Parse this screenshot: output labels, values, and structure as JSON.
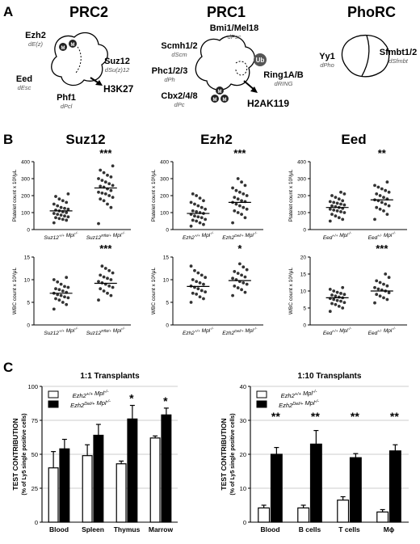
{
  "panel_letters": {
    "a": "A",
    "b": "B",
    "c": "C"
  },
  "panelA": {
    "prc2": {
      "title": "PRC2",
      "subunits": [
        {
          "name": "Ezh2",
          "fly": "dE(z)"
        },
        {
          "name": "Suz12",
          "fly": "dSu(z)12"
        },
        {
          "name": "Eed",
          "fly": "dEsc"
        },
        {
          "name": "Phf1",
          "fly": "dPcl"
        }
      ],
      "mark": "H3K27",
      "m_badge": "M"
    },
    "prc1": {
      "title": "PRC1",
      "subunits": [
        {
          "name": "Bmi1/Mel18",
          "fly": "dPsc"
        },
        {
          "name": "Scmh1/2",
          "fly": "dScm"
        },
        {
          "name": "Phc1/2/3",
          "fly": "dPh"
        },
        {
          "name": "Ring1A/B",
          "fly": "dRING"
        },
        {
          "name": "Cbx2/4/8",
          "fly": "dPc"
        }
      ],
      "ub_badge": "Ub",
      "mark": "H2AK119"
    },
    "phorc": {
      "title": "PhoRC",
      "subunits": [
        {
          "name": "Yy1",
          "fly": "dPho"
        },
        {
          "name": "Sfmbt1/2",
          "fly": "dSfmbt"
        }
      ]
    }
  },
  "panelB": {
    "column_titles": [
      "Suz12",
      "Ezh2",
      "Eed"
    ],
    "platelet_ylabel": "Platelet count x 10³/μL",
    "wbc_ylabel": "WBC count x 10³/μL",
    "genotypes": {
      "suz12": [
        "Suz12+/+ Mpl-/-",
        "Suz12Rfl8/+ Mpl-/-"
      ],
      "ezh2": [
        "Ezh2+/+ Mpl-/-",
        "Ezh2Del/+ Mpl-/-"
      ],
      "eed": [
        "Eed+/+ Mpl-/-",
        "Eed+/- Mpl-/-"
      ]
    }
  },
  "chart_data": [
    {
      "type": "scatter",
      "id": "suz12_platelet",
      "ylabel": "Platelet count x 10³/μL",
      "ylim": [
        0,
        400
      ],
      "yticks": [
        0,
        100,
        200,
        300,
        400
      ],
      "categories": [
        "Suz12+/+ Mpl-/-",
        "Suz12Rfl8/+ Mpl-/-"
      ],
      "series": [
        {
          "values": [
            40,
            55,
            60,
            65,
            70,
            75,
            80,
            85,
            90,
            95,
            100,
            105,
            110,
            115,
            120,
            125,
            130,
            140,
            150,
            160,
            170,
            180,
            195,
            210
          ]
        },
        {
          "values": [
            35,
            130,
            150,
            170,
            180,
            190,
            200,
            210,
            215,
            220,
            230,
            240,
            250,
            255,
            260,
            270,
            280,
            290,
            300,
            310,
            320,
            335,
            350,
            375
          ]
        }
      ],
      "means": [
        110,
        245
      ],
      "significance": "***"
    },
    {
      "type": "scatter",
      "id": "ezh2_platelet",
      "ylabel": "Platelet count x 10³/μL",
      "ylim": [
        0,
        400
      ],
      "yticks": [
        0,
        100,
        200,
        300,
        400
      ],
      "categories": [
        "Ezh2+/+ Mpl-/-",
        "Ezh2Del/+ Mpl-/-"
      ],
      "series": [
        {
          "values": [
            20,
            30,
            40,
            50,
            55,
            60,
            70,
            75,
            80,
            90,
            95,
            100,
            105,
            110,
            120,
            130,
            140,
            150,
            160,
            170,
            185,
            200,
            210
          ]
        },
        {
          "values": [
            40,
            70,
            90,
            100,
            110,
            120,
            130,
            140,
            150,
            160,
            165,
            170,
            180,
            190,
            200,
            210,
            220,
            230,
            245,
            260,
            280,
            300
          ]
        }
      ],
      "means": [
        95,
        160
      ],
      "significance": "***"
    },
    {
      "type": "scatter",
      "id": "eed_platelet",
      "ylabel": "Platelet count x 10³/μL",
      "ylim": [
        0,
        400
      ],
      "yticks": [
        0,
        100,
        200,
        300,
        400
      ],
      "categories": [
        "Eed+/+ Mpl-/-",
        "Eed+/- Mpl-/-"
      ],
      "series": [
        {
          "values": [
            50,
            60,
            70,
            80,
            90,
            100,
            105,
            110,
            115,
            120,
            125,
            130,
            135,
            140,
            145,
            150,
            155,
            160,
            165,
            170,
            180,
            190,
            200,
            210,
            220
          ]
        },
        {
          "values": [
            60,
            90,
            110,
            120,
            130,
            140,
            150,
            160,
            170,
            175,
            180,
            190,
            200,
            210,
            220,
            230,
            240,
            250,
            260,
            280
          ]
        }
      ],
      "means": [
        130,
        175
      ],
      "significance": "**"
    },
    {
      "type": "scatter",
      "id": "suz12_wbc",
      "ylabel": "WBC count x 10³/μL",
      "ylim": [
        0,
        15
      ],
      "yticks": [
        0,
        5,
        10,
        15
      ],
      "categories": [
        "Suz12+/+ Mpl-/-",
        "Suz12Rfl8/+ Mpl-/-"
      ],
      "series": [
        {
          "values": [
            3.5,
            4.5,
            5,
            5.5,
            5.8,
            6,
            6.2,
            6.5,
            6.7,
            7,
            7.2,
            7.5,
            7.8,
            8,
            8.3,
            8.5,
            9,
            9.5,
            10,
            10.5
          ]
        },
        {
          "values": [
            5.5,
            6.5,
            7,
            7.5,
            8,
            8.3,
            8.6,
            9,
            9.3,
            9.6,
            10,
            10.3,
            10.6,
            11,
            11.5,
            12,
            12.5,
            13
          ]
        }
      ],
      "means": [
        7,
        9.2
      ],
      "significance": "***"
    },
    {
      "type": "scatter",
      "id": "ezh2_wbc",
      "ylabel": "WBC count x 10³/μL",
      "ylim": [
        0,
        15
      ],
      "yticks": [
        0,
        5,
        10,
        15
      ],
      "categories": [
        "Ezh2+/+ Mpl-/-",
        "Ezh2Del/+ Mpl-/-"
      ],
      "series": [
        {
          "values": [
            5,
            5.8,
            6.2,
            6.8,
            7,
            7.3,
            7.6,
            8,
            8.3,
            8.6,
            9,
            9.3,
            9.6,
            10,
            10.5,
            11,
            11.5,
            12,
            13
          ]
        },
        {
          "values": [
            6.5,
            7.2,
            7.8,
            8.2,
            8.6,
            9,
            9.3,
            9.6,
            10,
            10.3,
            10.6,
            11,
            11.4,
            11.8,
            12.2,
            12.8,
            13.5
          ]
        }
      ],
      "means": [
        8.5,
        9.8
      ],
      "significance": "*"
    },
    {
      "type": "scatter",
      "id": "eed_wbc",
      "ylabel": "WBC count x 10³/μL",
      "ylim": [
        0,
        20
      ],
      "yticks": [
        0,
        5,
        10,
        15,
        20
      ],
      "categories": [
        "Eed+/+ Mpl-/-",
        "Eed+/- Mpl-/-"
      ],
      "series": [
        {
          "values": [
            4,
            5,
            5.5,
            6,
            6.3,
            6.6,
            7,
            7.2,
            7.5,
            7.8,
            8,
            8.2,
            8.5,
            8.8,
            9,
            9.3,
            9.6,
            10,
            10.5,
            11
          ]
        },
        {
          "values": [
            6.5,
            7.5,
            8,
            8.5,
            9,
            9.5,
            10,
            10.3,
            10.6,
            11,
            11.5,
            12,
            12.5,
            13,
            14,
            15
          ]
        }
      ],
      "means": [
        8,
        10
      ],
      "significance": "***"
    },
    {
      "type": "bar",
      "id": "transplant_1_1",
      "title": "1:1 Transplants",
      "ylabel": "TEST CONTRIBUTION",
      "ylabel2": "(% of Ly5 single positive cells)",
      "ylim": [
        0,
        100
      ],
      "yticks": [
        0,
        25,
        50,
        75,
        100
      ],
      "categories": [
        "Blood",
        "Spleen",
        "Thymus",
        "Marrow"
      ],
      "series": [
        {
          "name": "Ezh2+/+ Mpl-/-",
          "values": [
            40,
            49,
            43,
            62
          ],
          "errors": [
            12,
            8,
            2,
            1.5
          ]
        },
        {
          "name": "Ezh2Del/+ Mpl-/-",
          "values": [
            54,
            64,
            76,
            79
          ],
          "errors": [
            7,
            8,
            10,
            5
          ]
        }
      ],
      "significance": [
        "",
        "",
        "*",
        "*"
      ]
    },
    {
      "type": "bar",
      "id": "transplant_1_10",
      "title": "1:10 Transplants",
      "ylabel": "TEST CONTRIBUTION",
      "ylabel2": "(% of Ly5 single positive cells)",
      "ylim": [
        0,
        40
      ],
      "yticks": [
        0,
        10,
        20,
        30,
        40
      ],
      "categories": [
        "Blood",
        "B cells",
        "T cells",
        "Mϕ"
      ],
      "series": [
        {
          "name": "Ezh2+/+ Mpl-/-",
          "values": [
            4.2,
            4.2,
            6.5,
            3
          ],
          "errors": [
            0.8,
            0.8,
            1,
            0.7
          ]
        },
        {
          "name": "Ezh2Del/+ Mpl-/-",
          "values": [
            20,
            23,
            19,
            21
          ],
          "errors": [
            2,
            4,
            1.2,
            1.8
          ]
        }
      ],
      "significance": [
        "**",
        "**",
        "**",
        "**"
      ]
    }
  ],
  "colors": {
    "ink": "#000000",
    "paper": "#ffffff",
    "gridline": "#bbbbbb",
    "shadow": "#555555",
    "badge": "#222222",
    "fly_label": "#555555",
    "dot": "#333333"
  }
}
